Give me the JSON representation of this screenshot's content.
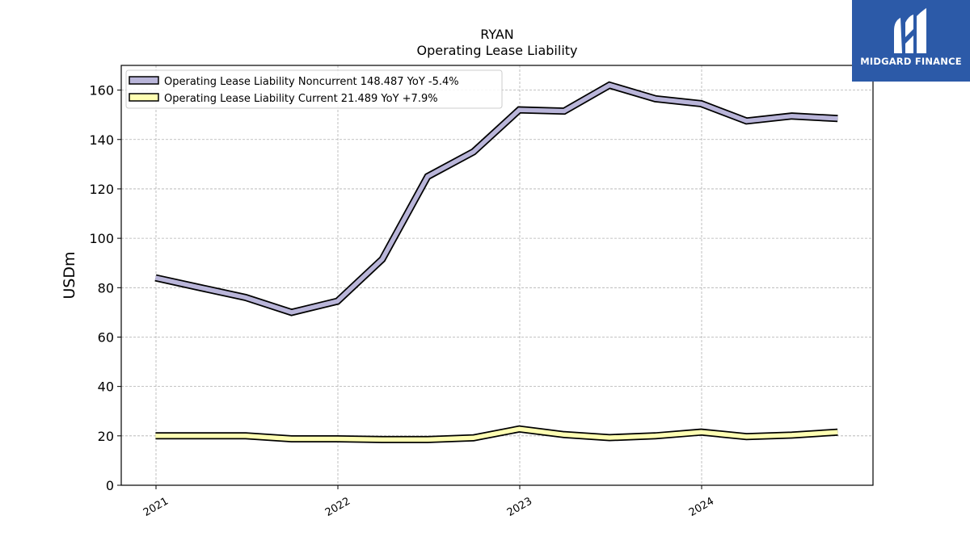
{
  "brand": {
    "name": "MIDGARD FINANCE",
    "bg_color": "#2c5aa8",
    "icon": "midgard-m-logo-icon"
  },
  "chart_data": {
    "type": "line",
    "title": "RYAN",
    "subtitle": "Operating Lease Liability",
    "ylabel": "USDm",
    "xlabel": "",
    "ylim": [
      0,
      170
    ],
    "yticks": [
      0,
      20,
      40,
      60,
      80,
      100,
      120,
      140,
      160
    ],
    "xticks": [
      "2021",
      "2022",
      "2023",
      "2024"
    ],
    "grid": true,
    "legend_position": "top-left",
    "x": [
      "2020-12-31",
      "2021-03-31",
      "2021-06-30",
      "2021-09-30",
      "2021-12-31",
      "2022-03-31",
      "2022-06-30",
      "2022-09-30",
      "2022-12-31",
      "2023-03-31",
      "2023-06-30",
      "2023-09-30",
      "2023-12-31",
      "2024-03-31",
      "2024-06-30",
      "2024-09-30"
    ],
    "series": [
      {
        "name": "Operating Lease Liability Noncurrent",
        "legend_label": "Operating Lease Liability Noncurrent  148.487 YoY -5.4%",
        "color": "#b9b5d9",
        "values": [
          84.0,
          80.0,
          76.0,
          70.0,
          74.5,
          91.5,
          125.0,
          135.0,
          152.0,
          151.5,
          162.0,
          156.5,
          154.5,
          147.5,
          149.5,
          148.5
        ]
      },
      {
        "name": "Operating Lease Liability Current",
        "legend_label": "Operating Lease Liability Current  21.489 YoY +7.9%",
        "color": "#ffffb3",
        "values": [
          20.0,
          20.0,
          20.0,
          18.8,
          18.8,
          18.5,
          18.5,
          19.2,
          22.8,
          20.5,
          19.3,
          20.0,
          21.5,
          19.7,
          20.3,
          21.5
        ]
      }
    ]
  }
}
